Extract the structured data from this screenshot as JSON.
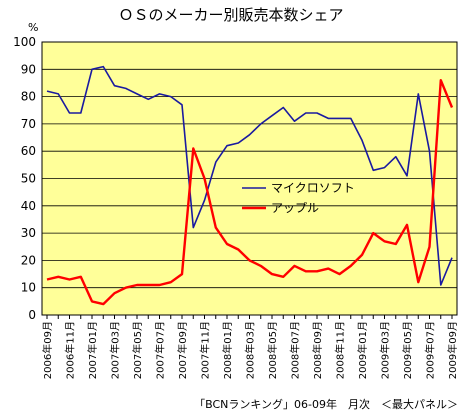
{
  "chart_data": {
    "type": "line",
    "title": "ＯＳのメーカー別販売本数シェア",
    "y_unit": "%",
    "source_note": "「BCNランキング」06-09年　月次　＜最大パネル＞",
    "ylim": [
      0,
      100
    ],
    "yticks": [
      "0",
      "10",
      "20",
      "30",
      "40",
      "50",
      "60",
      "70",
      "80",
      "90",
      "100"
    ],
    "x": [
      "2006年09月",
      "2006年10月",
      "2006年11月",
      "2006年12月",
      "2007年01月",
      "2007年02月",
      "2007年03月",
      "2007年04月",
      "2007年05月",
      "2007年06月",
      "2007年07月",
      "2007年08月",
      "2007年09月",
      "2007年10月",
      "2007年11月",
      "2007年12月",
      "2008年01月",
      "2008年02月",
      "2008年03月",
      "2008年04月",
      "2008年05月",
      "2008年06月",
      "2008年07月",
      "2008年08月",
      "2008年09月",
      "2008年10月",
      "2008年11月",
      "2008年12月",
      "2009年01月",
      "2009年02月",
      "2009年03月",
      "2009年04月",
      "2009年05月",
      "2009年06月",
      "2009年07月",
      "2009年08月",
      "2009年09月"
    ],
    "x_tick_labels": [
      "2006年09月",
      "2006年11月",
      "2007年01月",
      "2007年03月",
      "2007年05月",
      "2007年07月",
      "2007年09月",
      "2007年11月",
      "2008年01月",
      "2008年03月",
      "2008年05月",
      "2008年07月",
      "2008年09月",
      "2008年11月",
      "2009年01月",
      "2009年03月",
      "2009年05月",
      "2009年07月",
      "2009年09月"
    ],
    "series": [
      {
        "name": "マイクロソフト",
        "color": "#1a1aa0",
        "values": [
          82,
          81,
          74,
          74,
          90,
          91,
          84,
          83,
          81,
          79,
          81,
          80,
          77,
          32,
          42,
          56,
          62,
          63,
          66,
          70,
          73,
          76,
          71,
          74,
          74,
          72,
          72,
          72,
          64,
          53,
          54,
          58,
          51,
          81,
          60,
          11,
          21
        ]
      },
      {
        "name": "アップル",
        "color": "#ff0000",
        "values": [
          13,
          14,
          13,
          14,
          5,
          4,
          8,
          10,
          11,
          11,
          11,
          12,
          15,
          61,
          50,
          32,
          26,
          24,
          20,
          18,
          15,
          14,
          18,
          16,
          16,
          17,
          15,
          18,
          22,
          30,
          27,
          26,
          33,
          12,
          25,
          86,
          76
        ]
      }
    ],
    "plot_background": "#ffff99",
    "grid": true,
    "legend_position": "center-right"
  }
}
